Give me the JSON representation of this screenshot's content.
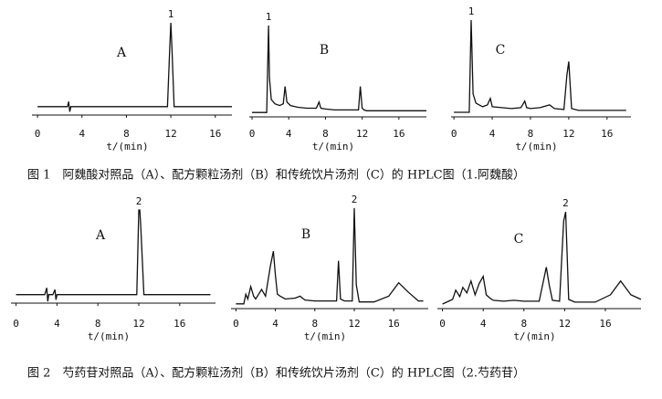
{
  "chart_data": [
    {
      "type": "line",
      "panel_label": "A",
      "peak_label": "1",
      "x_label": "t/(min)",
      "color": "#111",
      "x": [
        0,
        2.7,
        2.8,
        2.9,
        3,
        11.7,
        11.9,
        12,
        12.1,
        12.3,
        17.5
      ],
      "values": [
        0,
        0,
        6,
        -6,
        0,
        0,
        70,
        100,
        70,
        0,
        0
      ],
      "xlim": [
        -0.5,
        17.5
      ],
      "ylim": [
        -10,
        100
      ],
      "xticks": [
        0,
        4,
        8,
        12,
        16
      ]
    },
    {
      "type": "line",
      "panel_label": "B",
      "peak_label": "1",
      "x_label": "t/(min)",
      "color": "#111",
      "x": [
        0,
        1.6,
        1.8,
        1.9,
        2.1,
        2.5,
        3,
        3.4,
        3.6,
        3.8,
        4.2,
        5,
        6,
        7,
        7.3,
        7.5,
        8,
        9,
        10,
        11.6,
        11.8,
        12,
        12.2,
        12.5,
        14,
        16,
        19
      ],
      "values": [
        0,
        0,
        100,
        40,
        15,
        10,
        8,
        10,
        30,
        12,
        8,
        6,
        5,
        5,
        12,
        5,
        4,
        3,
        3,
        3,
        30,
        5,
        3,
        2,
        2,
        2,
        2
      ],
      "xlim": [
        -0.3,
        19
      ],
      "ylim": [
        -5,
        100
      ],
      "xticks": [
        0,
        4,
        8,
        12,
        16
      ]
    },
    {
      "type": "line",
      "panel_label": "C",
      "peak_label": "1",
      "x_label": "t/(min)",
      "color": "#111",
      "x": [
        0,
        1.6,
        1.8,
        2,
        2.3,
        3,
        3.5,
        3.8,
        4,
        5,
        6,
        7,
        7.4,
        7.6,
        8,
        9,
        10,
        10.5,
        11.5,
        11.8,
        12,
        12.3,
        13,
        16,
        18
      ],
      "values": [
        0,
        0,
        100,
        20,
        10,
        6,
        8,
        15,
        6,
        5,
        4,
        5,
        12,
        5,
        4,
        5,
        8,
        4,
        3,
        40,
        55,
        4,
        2,
        2,
        2
      ],
      "xlim": [
        -0.3,
        18.5
      ],
      "ylim": [
        -5,
        100
      ],
      "xticks": [
        0,
        4,
        8,
        12,
        16
      ]
    },
    {
      "type": "line",
      "panel_label": "A",
      "peak_label": "2",
      "x_label": "t/(min)",
      "color": "#111",
      "x": [
        0,
        2.8,
        3,
        3.1,
        3.2,
        3.6,
        3.8,
        3.9,
        4,
        11.8,
        12,
        12.1,
        12.2,
        12.5,
        19
      ],
      "values": [
        0,
        0,
        8,
        -8,
        0,
        0,
        6,
        -6,
        0,
        0,
        100,
        100,
        80,
        0,
        0
      ],
      "xlim": [
        -0.5,
        19.5
      ],
      "ylim": [
        -10,
        100
      ],
      "xticks": [
        0,
        4,
        8,
        12,
        16
      ]
    },
    {
      "type": "line",
      "panel_label": "B",
      "peak_label": "2",
      "x_label": "t/(min)",
      "color": "#111",
      "x": [
        0,
        0.8,
        1,
        1.2,
        1.5,
        1.8,
        2,
        2.3,
        2.6,
        3,
        3.5,
        3.8,
        4,
        4.2,
        4.5,
        5,
        6,
        6.5,
        7,
        8,
        9,
        10.2,
        10.4,
        10.6,
        11,
        11.8,
        12,
        12.2,
        12.5,
        14,
        15.5,
        16.5,
        17.5,
        18.5,
        19
      ],
      "values": [
        0,
        0,
        10,
        5,
        18,
        8,
        5,
        10,
        15,
        8,
        40,
        55,
        30,
        10,
        8,
        5,
        6,
        8,
        4,
        3,
        3,
        3,
        45,
        5,
        3,
        3,
        100,
        20,
        2,
        2,
        8,
        22,
        12,
        3,
        3
      ],
      "xlim": [
        -0.5,
        19.5
      ],
      "ylim": [
        -5,
        100
      ],
      "xticks": [
        0,
        4,
        8,
        12,
        16
      ]
    },
    {
      "type": "line",
      "panel_label": "C",
      "peak_label": "2",
      "x_label": "t/(min)",
      "color": "#111",
      "x": [
        0,
        1,
        1.3,
        1.7,
        2,
        2.4,
        2.8,
        3.2,
        3.6,
        4,
        4.3,
        4.7,
        5,
        6,
        7,
        8,
        9.5,
        10.2,
        10.5,
        10.8,
        11.5,
        11.9,
        12.1,
        12.4,
        13,
        15,
        16.5,
        17.5,
        18.5,
        19.5
      ],
      "values": [
        0,
        5,
        15,
        8,
        18,
        12,
        25,
        10,
        22,
        30,
        10,
        6,
        4,
        3,
        4,
        3,
        3,
        40,
        20,
        4,
        3,
        90,
        100,
        5,
        2,
        2,
        10,
        25,
        10,
        5
      ],
      "xlim": [
        -0.5,
        19.5
      ],
      "ylim": [
        -5,
        100
      ],
      "xticks": [
        0,
        4,
        8,
        12,
        16
      ]
    }
  ],
  "captions": [
    "图 1　阿魏酸对照品（A）、配方颗粒汤剂（B）和传统饮片汤剂（C）的 HPLC图（1.阿魏酸）",
    "图 2　芍药苷对照品（A）、配方颗粒汤剂（B）和传统饮片汤剂（C）的 HPLC图（2.芍药苷）"
  ]
}
